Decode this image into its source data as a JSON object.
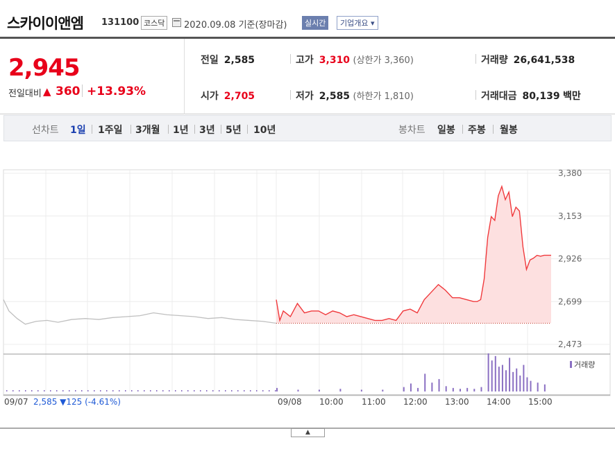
{
  "header": {
    "company_name": "스카이이앤엠",
    "code": "131100",
    "market": "코스닥",
    "date_text": "2020.09.08 기준(장마감)",
    "realtime_label": "실시간",
    "company_info_label": "기업개요 ▾"
  },
  "summary": {
    "price": "2,945",
    "change_label": "전일대비",
    "change_arrow": "▲",
    "change_value": "360",
    "change_pct": "+13.93%",
    "prev_close_label": "전일",
    "prev_close": "2,585",
    "high_label": "고가",
    "high": "3,310",
    "upper_limit": "(상한가 3,360)",
    "volume_label": "거래량",
    "volume": "26,641,538",
    "open_label": "시가",
    "open": "2,705",
    "low_label": "저가",
    "low": "2,585",
    "lower_limit": "(하한가 1,810)",
    "amount_label": "거래대금",
    "amount": "80,139",
    "amount_unit": "백만"
  },
  "tabs": {
    "line_label": "선차트",
    "periods": [
      "1일",
      "1주일",
      "3개월",
      "1년",
      "3년",
      "5년",
      "10년"
    ],
    "active_period": "1일",
    "candle_label": "봉차트",
    "candles": [
      "일봉",
      "주봉",
      "월봉"
    ]
  },
  "colors": {
    "up": "#e8001a",
    "down": "#1f5ad6",
    "line_today": "#f0393c",
    "fill_today": "#fde0e0",
    "line_prev": "#bfbfbf",
    "volume": "#8a6fc2"
  },
  "chart_data": {
    "type": "line",
    "y_ticks": [
      "3,380",
      "3,153",
      "2,926",
      "2,699",
      "2,473"
    ],
    "ylim": [
      2473,
      3380
    ],
    "baseline": 2585,
    "x_ticks": [
      "09/07",
      "09/08",
      "10:00",
      "11:00",
      "12:00",
      "13:00",
      "14:00",
      "15:00"
    ],
    "prev_day_label": "09/07",
    "prev_day_close": "2,585",
    "prev_day_change": "▼125",
    "prev_day_pct": "(-4.61%)",
    "volume_legend": "거래량",
    "series": [
      {
        "name": "09/07",
        "x": [
          0,
          0.02,
          0.05,
          0.08,
          0.12,
          0.16,
          0.2,
          0.25,
          0.3,
          0.35,
          0.4,
          0.45,
          0.5,
          0.55,
          0.6,
          0.65,
          0.7,
          0.75,
          0.8,
          0.85,
          0.9,
          0.95,
          1.0
        ],
        "values": [
          2710,
          2650,
          2610,
          2580,
          2595,
          2600,
          2590,
          2605,
          2610,
          2605,
          2615,
          2620,
          2625,
          2640,
          2630,
          2625,
          2620,
          2610,
          2615,
          2605,
          2600,
          2595,
          2585
        ]
      },
      {
        "name": "09/08",
        "time": [
          "09:00",
          "09:05",
          "09:10",
          "09:20",
          "09:30",
          "09:40",
          "09:50",
          "10:00",
          "10:10",
          "10:20",
          "10:30",
          "10:40",
          "10:50",
          "11:00",
          "11:10",
          "11:20",
          "11:30",
          "11:40",
          "11:50",
          "12:00",
          "12:10",
          "12:20",
          "12:30",
          "12:40",
          "12:50",
          "13:00",
          "13:10",
          "13:20",
          "13:30",
          "13:40",
          "13:45",
          "13:50",
          "13:55",
          "14:00",
          "14:05",
          "14:10",
          "14:15",
          "14:20",
          "14:25",
          "14:30",
          "14:35",
          "14:40",
          "14:45",
          "14:50",
          "14:55",
          "15:00",
          "15:05",
          "15:10",
          "15:15",
          "15:20",
          "15:25",
          "15:30"
        ],
        "values": [
          2710,
          2600,
          2650,
          2620,
          2690,
          2640,
          2650,
          2650,
          2630,
          2650,
          2640,
          2620,
          2630,
          2620,
          2610,
          2600,
          2600,
          2610,
          2600,
          2650,
          2660,
          2640,
          2710,
          2750,
          2790,
          2760,
          2720,
          2720,
          2710,
          2700,
          2700,
          2710,
          2820,
          3040,
          3150,
          3130,
          3260,
          3310,
          3240,
          3280,
          3150,
          3200,
          3180,
          2990,
          2870,
          2920,
          2930,
          2945,
          2940,
          2945,
          2945,
          2945
        ]
      }
    ],
    "volume": {
      "prev_day_level": "low",
      "time": [
        "09:00",
        "09:30",
        "10:00",
        "10:30",
        "11:00",
        "11:30",
        "12:00",
        "12:10",
        "12:20",
        "12:30",
        "12:40",
        "12:50",
        "13:00",
        "13:10",
        "13:20",
        "13:30",
        "13:40",
        "13:50",
        "14:00",
        "14:05",
        "14:10",
        "14:15",
        "14:20",
        "14:25",
        "14:30",
        "14:35",
        "14:40",
        "14:45",
        "14:50",
        "14:55",
        "15:00",
        "15:10",
        "15:20"
      ],
      "values": [
        4,
        2,
        2,
        3,
        2,
        2,
        5,
        9,
        4,
        20,
        10,
        14,
        6,
        4,
        3,
        4,
        3,
        5,
        43,
        35,
        40,
        28,
        30,
        24,
        38,
        22,
        26,
        18,
        30,
        16,
        12,
        10,
        8
      ]
    }
  }
}
